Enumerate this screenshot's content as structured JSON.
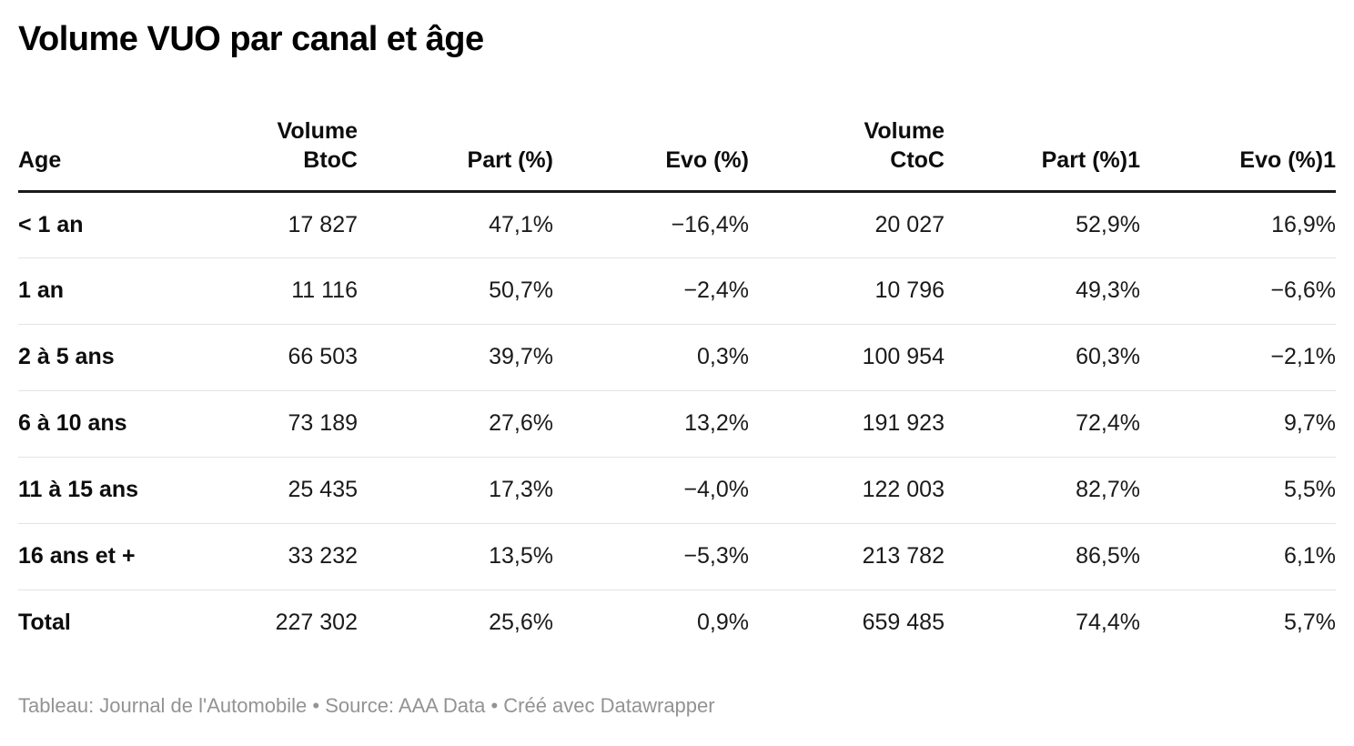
{
  "title": "Volume VUO par canal et âge",
  "footer": "Tableau: Journal de l'Automobile • Source: AAA Data • Créé avec Datawrapper",
  "colors": {
    "title_text": "#000000",
    "body_text": "#1a1a1a",
    "header_rule": "#1a1a1a",
    "row_rule": "#e3e3e3",
    "footer_text": "#939393",
    "background": "#ffffff"
  },
  "table": {
    "columns": [
      {
        "label": "Age",
        "align": "left"
      },
      {
        "label": "Volume\nBtoC",
        "align": "right"
      },
      {
        "label": "Part (%)",
        "align": "right"
      },
      {
        "label": "Evo (%)",
        "align": "right"
      },
      {
        "label": "Volume\nCtoC",
        "align": "right"
      },
      {
        "label": "Part (%)1",
        "align": "right"
      },
      {
        "label": "Evo (%)1",
        "align": "right"
      }
    ],
    "rows": [
      [
        "< 1 an",
        "17 827",
        "47,1%",
        "−16,4%",
        "20 027",
        "52,9%",
        "16,9%"
      ],
      [
        "1 an",
        "11 116",
        "50,7%",
        "−2,4%",
        "10 796",
        "49,3%",
        "−6,6%"
      ],
      [
        "2 à 5 ans",
        "66 503",
        "39,7%",
        "0,3%",
        "100 954",
        "60,3%",
        "−2,1%"
      ],
      [
        "6 à 10 ans",
        "73 189",
        "27,6%",
        "13,2%",
        "191 923",
        "72,4%",
        "9,7%"
      ],
      [
        "11 à 15 ans",
        "25 435",
        "17,3%",
        "−4,0%",
        "122 003",
        "82,7%",
        "5,5%"
      ],
      [
        "16 ans et +",
        "33 232",
        "13,5%",
        "−5,3%",
        "213 782",
        "86,5%",
        "6,1%"
      ],
      [
        "Total",
        "227 302",
        "25,6%",
        "0,9%",
        "659 485",
        "74,4%",
        "5,7%"
      ]
    ]
  },
  "chart_data": {
    "type": "table",
    "title": "Volume VUO par canal et âge",
    "columns": [
      "Age",
      "Volume BtoC",
      "Part (%)",
      "Evo (%)",
      "Volume CtoC",
      "Part (%)1",
      "Evo (%)1"
    ],
    "categories": [
      "< 1 an",
      "1 an",
      "2 à 5 ans",
      "6 à 10 ans",
      "11 à 15 ans",
      "16 ans et +",
      "Total"
    ],
    "series": [
      {
        "name": "Volume BtoC",
        "values": [
          17827,
          11116,
          66503,
          73189,
          25435,
          33232,
          227302
        ]
      },
      {
        "name": "Part (%)",
        "values": [
          47.1,
          50.7,
          39.7,
          27.6,
          17.3,
          13.5,
          25.6
        ]
      },
      {
        "name": "Evo (%)",
        "values": [
          -16.4,
          -2.4,
          0.3,
          13.2,
          -4.0,
          -5.3,
          0.9
        ]
      },
      {
        "name": "Volume CtoC",
        "values": [
          20027,
          10796,
          100954,
          191923,
          122003,
          213782,
          659485
        ]
      },
      {
        "name": "Part (%)1",
        "values": [
          52.9,
          49.3,
          60.3,
          72.4,
          82.7,
          86.5,
          74.4
        ]
      },
      {
        "name": "Evo (%)1",
        "values": [
          16.9,
          -6.6,
          -2.1,
          9.7,
          5.5,
          6.1,
          5.7
        ]
      }
    ],
    "footer": "Tableau: Journal de l'Automobile • Source: AAA Data • Créé avec Datawrapper"
  }
}
